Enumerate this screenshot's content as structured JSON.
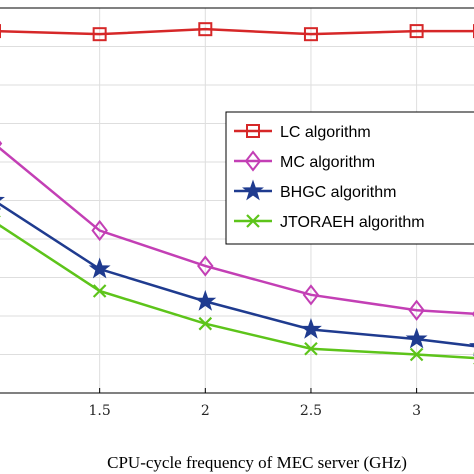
{
  "chart_data": {
    "type": "line",
    "title": "",
    "xlabel": "CPU-cycle frequency of MEC server (GHz)",
    "ylabel": "",
    "x": [
      1,
      1.5,
      2,
      2.5,
      3,
      3.3
    ],
    "xlim": [
      1,
      3.3
    ],
    "xticks": [
      "1.5",
      "2",
      "2.5",
      "3"
    ],
    "grid": true,
    "legend_position": "right",
    "series": [
      {
        "name": "LC algorithm",
        "color": "#d62728",
        "marker": "square",
        "values": [
          0.94,
          0.932,
          0.945,
          0.932,
          0.94,
          0.94
        ]
      },
      {
        "name": "MC algorithm",
        "color": "#c33fb5",
        "marker": "diamond",
        "values": [
          0.648,
          0.422,
          0.33,
          0.255,
          0.215,
          0.205
        ]
      },
      {
        "name": "BHGC algorithm",
        "color": "#1f3b8f",
        "marker": "star",
        "values": [
          0.5,
          0.322,
          0.238,
          0.165,
          0.14,
          0.12
        ]
      },
      {
        "name": "JTORAEH algorithm",
        "color": "#5dc41a",
        "marker": "x",
        "values": [
          0.445,
          0.265,
          0.18,
          0.115,
          0.1,
          0.09
        ]
      }
    ],
    "ylim": [
      0,
      1
    ]
  }
}
